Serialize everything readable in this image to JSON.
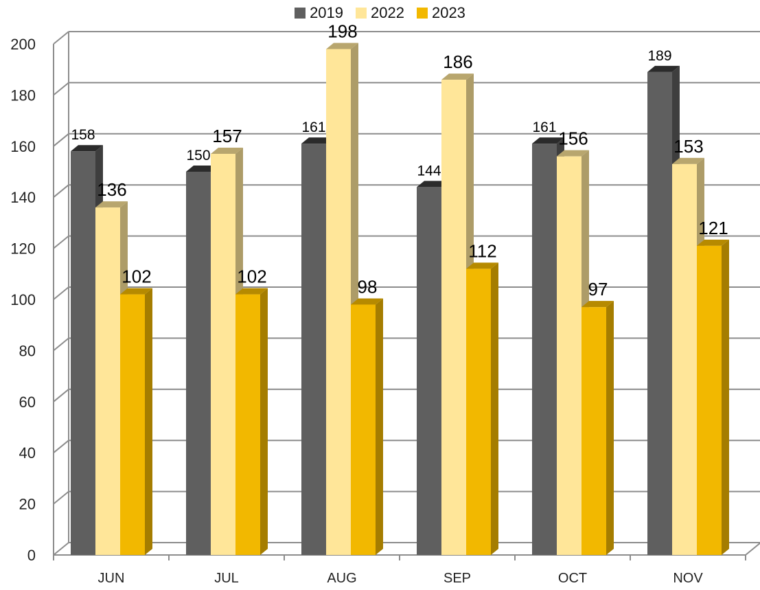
{
  "chart_data": {
    "type": "bar",
    "categories": [
      "JUN",
      "JUL",
      "AUG",
      "SEP",
      "OCT",
      "NOV"
    ],
    "series": [
      {
        "name": "2019",
        "values": [
          158,
          150,
          161,
          144,
          161,
          189
        ],
        "color": "#5f5f5f"
      },
      {
        "name": "2022",
        "values": [
          136,
          157,
          198,
          186,
          156,
          153
        ],
        "color": "#ffe699"
      },
      {
        "name": "2023",
        "values": [
          102,
          102,
          98,
          112,
          97,
          121
        ],
        "color": "#f2b800"
      }
    ],
    "ylim": [
      0,
      200
    ],
    "yticks": [
      0,
      20,
      40,
      60,
      80,
      100,
      120,
      140,
      160,
      180,
      200
    ],
    "grid": true,
    "legend_position": "top-center"
  }
}
